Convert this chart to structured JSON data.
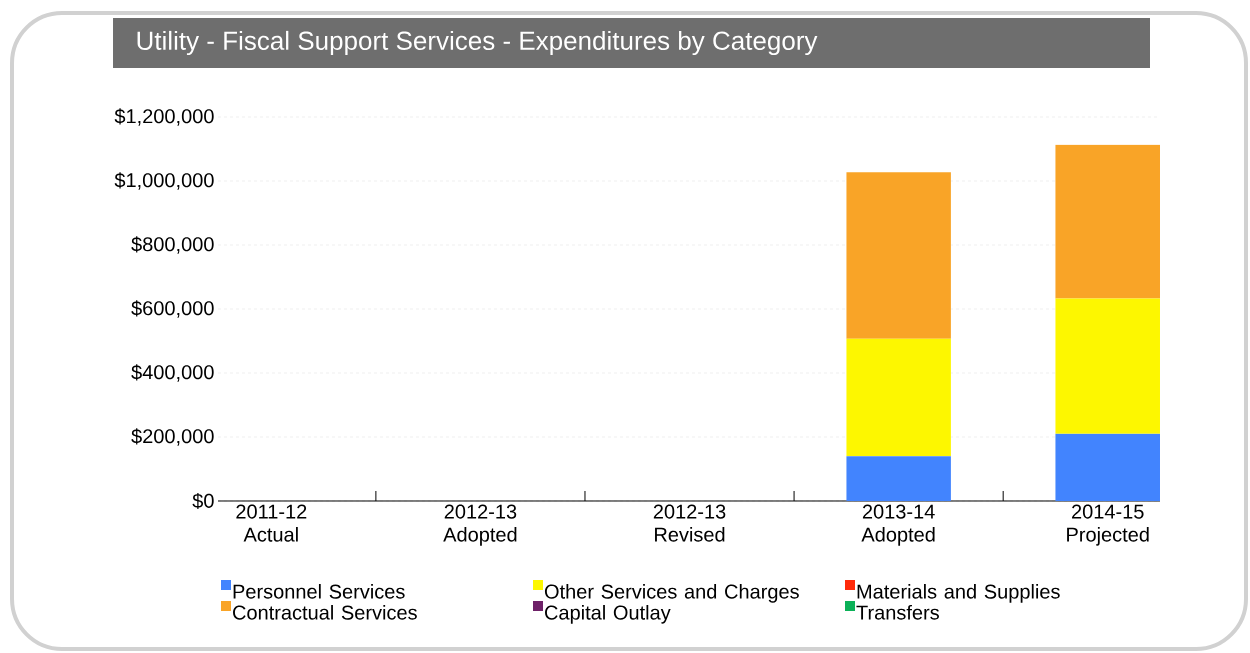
{
  "chart_data": {
    "type": "bar",
    "title": "Utility - Fiscal Support Services - Expenditures by Category",
    "categories": [
      "2011-12 Actual",
      "2012-13 Adopted",
      "2012-13 Revised",
      "2013-14 Adopted",
      "2014-15 Projected"
    ],
    "stacked": true,
    "series": [
      {
        "name": "Personnel Services",
        "color": "#4284fe",
        "values": [
          0,
          0,
          0,
          140000,
          210000
        ]
      },
      {
        "name": "Other Services and Charges",
        "color": "#fdf700",
        "values": [
          0,
          0,
          0,
          367000,
          423000
        ]
      },
      {
        "name": "Materials and Supplies",
        "color": "#ff2a0a",
        "values": [
          0,
          0,
          0,
          0,
          0
        ]
      },
      {
        "name": "Contractual Services",
        "color": "#f9a427",
        "values": [
          0,
          0,
          0,
          520000,
          480000
        ]
      },
      {
        "name": "Capital Outlay",
        "color": "#6e2168",
        "values": [
          0,
          0,
          0,
          0,
          0
        ]
      },
      {
        "name": "Transfers",
        "color": "#0bb158",
        "values": [
          0,
          0,
          0,
          0,
          0
        ]
      }
    ],
    "ylim": [
      0,
      1200000
    ],
    "yticks": [
      {
        "value": 0,
        "label": "$0"
      },
      {
        "value": 200000,
        "label": "$200,000"
      },
      {
        "value": 400000,
        "label": "$400,000"
      },
      {
        "value": 600000,
        "label": "$600,000"
      },
      {
        "value": 800000,
        "label": "$800,000"
      },
      {
        "value": 1000000,
        "label": "$1,000,000"
      },
      {
        "value": 1200000,
        "label": "$1,200,000"
      }
    ],
    "grid": "y",
    "legend": "bottom"
  }
}
